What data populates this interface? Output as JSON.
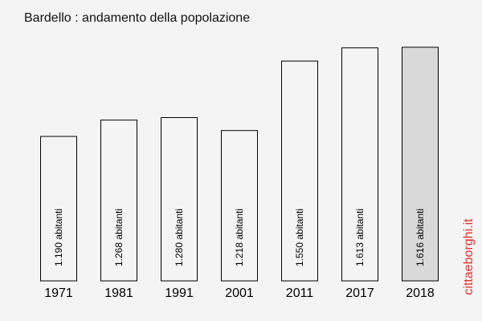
{
  "watermark": "cittaeborghi.it",
  "colors": {
    "bar_fill": "#f4f4f4",
    "highlight_fill": "#d9d9d9",
    "bar_stroke": "#000000",
    "watermark": "#e03030"
  },
  "chart_data": {
    "type": "bar",
    "title": "Bardello : andamento della popolazione",
    "categories": [
      "1971",
      "1981",
      "1991",
      "2001",
      "2011",
      "2017",
      "2018"
    ],
    "values": [
      1190,
      1268,
      1280,
      1218,
      1550,
      1613,
      1616
    ],
    "value_labels": [
      "1.190 abitanti",
      "1.268 abitanti",
      "1.280 abitanti",
      "1.218 abitanti",
      "1.550 abitanti",
      "1.613 abitanti",
      "1.616 abitanti"
    ],
    "highlighted_category": "2018",
    "xlabel": "",
    "ylabel": "",
    "ylim": [
      500,
      1650
    ],
    "grid": false,
    "legend": "none"
  }
}
